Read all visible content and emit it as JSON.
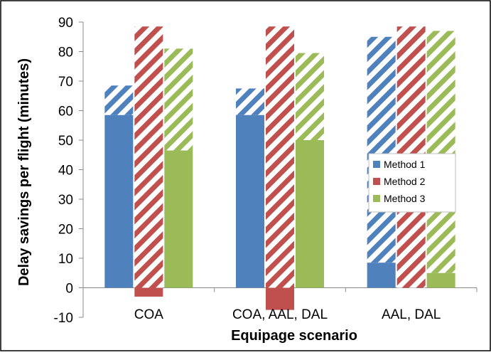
{
  "chart_data": {
    "type": "bar",
    "xlabel": "Equipage scenario",
    "ylabel": "Delay savings per flight (minutes)",
    "ylim": [
      -10,
      90
    ],
    "yticks": [
      -10,
      0,
      10,
      20,
      30,
      40,
      50,
      60,
      70,
      80,
      90
    ],
    "categories": [
      "COA",
      "COA, AAL, DAL",
      "AAL, DAL"
    ],
    "grid": false,
    "legend_position": "right",
    "series": [
      {
        "name": "Method 1",
        "color": "#4f81bd",
        "solid_values": [
          58.5,
          58.5,
          8.5
        ],
        "hatched_totals": [
          68.5,
          67.5,
          85
        ]
      },
      {
        "name": "Method 2",
        "color": "#c0504d",
        "solid_values": [
          -3,
          -7.5,
          0
        ],
        "hatched_totals": [
          88.5,
          88.5,
          88.5
        ]
      },
      {
        "name": "Method 3",
        "color": "#9bbb59",
        "solid_values": [
          46.5,
          50,
          5
        ],
        "hatched_totals": [
          81,
          79.5,
          87
        ]
      }
    ]
  }
}
